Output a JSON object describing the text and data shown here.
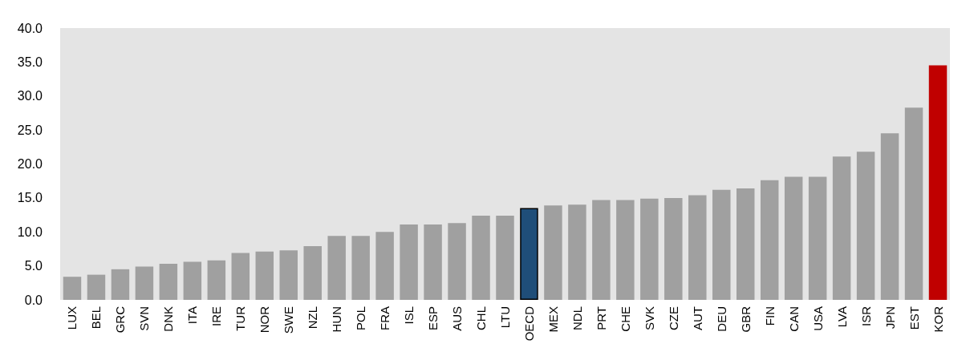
{
  "chart_data": {
    "type": "bar",
    "categories": [
      "LUX",
      "BEL",
      "GRC",
      "SVN",
      "DNK",
      "ITA",
      "IRE",
      "TUR",
      "NOR",
      "SWE",
      "NZL",
      "HUN",
      "POL",
      "FRA",
      "ISL",
      "ESP",
      "AUS",
      "CHL",
      "LTU",
      "OECD",
      "MEX",
      "NDL",
      "PRT",
      "CHE",
      "SVK",
      "CZE",
      "AUT",
      "DEU",
      "GBR",
      "FIN",
      "CAN",
      "USA",
      "LVA",
      "ISR",
      "JPN",
      "EST",
      "KOR"
    ],
    "values": [
      3.4,
      3.7,
      4.5,
      4.9,
      5.3,
      5.6,
      5.8,
      6.9,
      7.1,
      7.3,
      7.9,
      9.4,
      9.4,
      10.0,
      11.1,
      11.1,
      11.3,
      12.4,
      12.4,
      13.5,
      13.9,
      14.0,
      14.7,
      14.7,
      14.9,
      15.0,
      15.4,
      16.2,
      16.4,
      17.6,
      18.1,
      18.1,
      21.1,
      21.8,
      24.5,
      28.3,
      34.5
    ],
    "colors": [
      "#a0a0a0",
      "#a0a0a0",
      "#a0a0a0",
      "#a0a0a0",
      "#a0a0a0",
      "#a0a0a0",
      "#a0a0a0",
      "#a0a0a0",
      "#a0a0a0",
      "#a0a0a0",
      "#a0a0a0",
      "#a0a0a0",
      "#a0a0a0",
      "#a0a0a0",
      "#a0a0a0",
      "#a0a0a0",
      "#a0a0a0",
      "#a0a0a0",
      "#a0a0a0",
      "#1f4e79",
      "#a0a0a0",
      "#a0a0a0",
      "#a0a0a0",
      "#a0a0a0",
      "#a0a0a0",
      "#a0a0a0",
      "#a0a0a0",
      "#a0a0a0",
      "#a0a0a0",
      "#a0a0a0",
      "#a0a0a0",
      "#a0a0a0",
      "#a0a0a0",
      "#a0a0a0",
      "#a0a0a0",
      "#a0a0a0",
      "#c00000"
    ],
    "ylim": [
      0,
      40
    ],
    "yticks": [
      {
        "value": 0,
        "label": "0.0"
      },
      {
        "value": 5,
        "label": "5.0"
      },
      {
        "value": 10,
        "label": "10.0"
      },
      {
        "value": 15,
        "label": "15.0"
      },
      {
        "value": 20,
        "label": "20.0"
      },
      {
        "value": 25,
        "label": "25.0"
      },
      {
        "value": 30,
        "label": "30.0"
      },
      {
        "value": 35,
        "label": "35.0"
      },
      {
        "value": 40,
        "label": "40.0"
      }
    ],
    "grid": false
  }
}
